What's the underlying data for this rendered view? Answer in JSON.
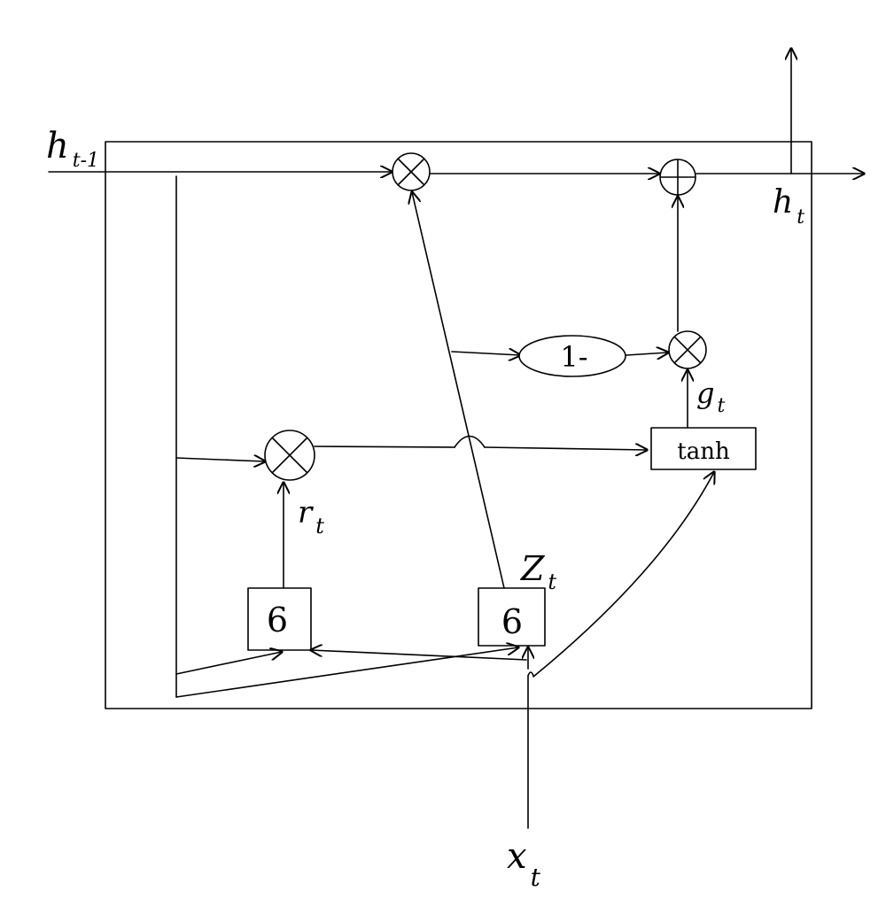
{
  "diagram": {
    "inputs": {
      "prev_hidden": {
        "base": "h",
        "sub": "t-1"
      },
      "current_input": {
        "base": "x",
        "sub": "t"
      }
    },
    "outputs": {
      "hidden": {
        "base": "h",
        "sub": "t"
      }
    },
    "gates": {
      "reset": {
        "box_label": "6",
        "signal": {
          "base": "r",
          "sub": "t"
        }
      },
      "update": {
        "box_label": "6",
        "signal": {
          "base": "Z",
          "sub": "t"
        }
      }
    },
    "candidate": {
      "box_label": "tanh",
      "signal": {
        "base": "g",
        "sub": "t"
      }
    },
    "one_minus": {
      "label": "1-"
    },
    "colors": {
      "ink": "#000000",
      "background": "#ffffff"
    }
  }
}
